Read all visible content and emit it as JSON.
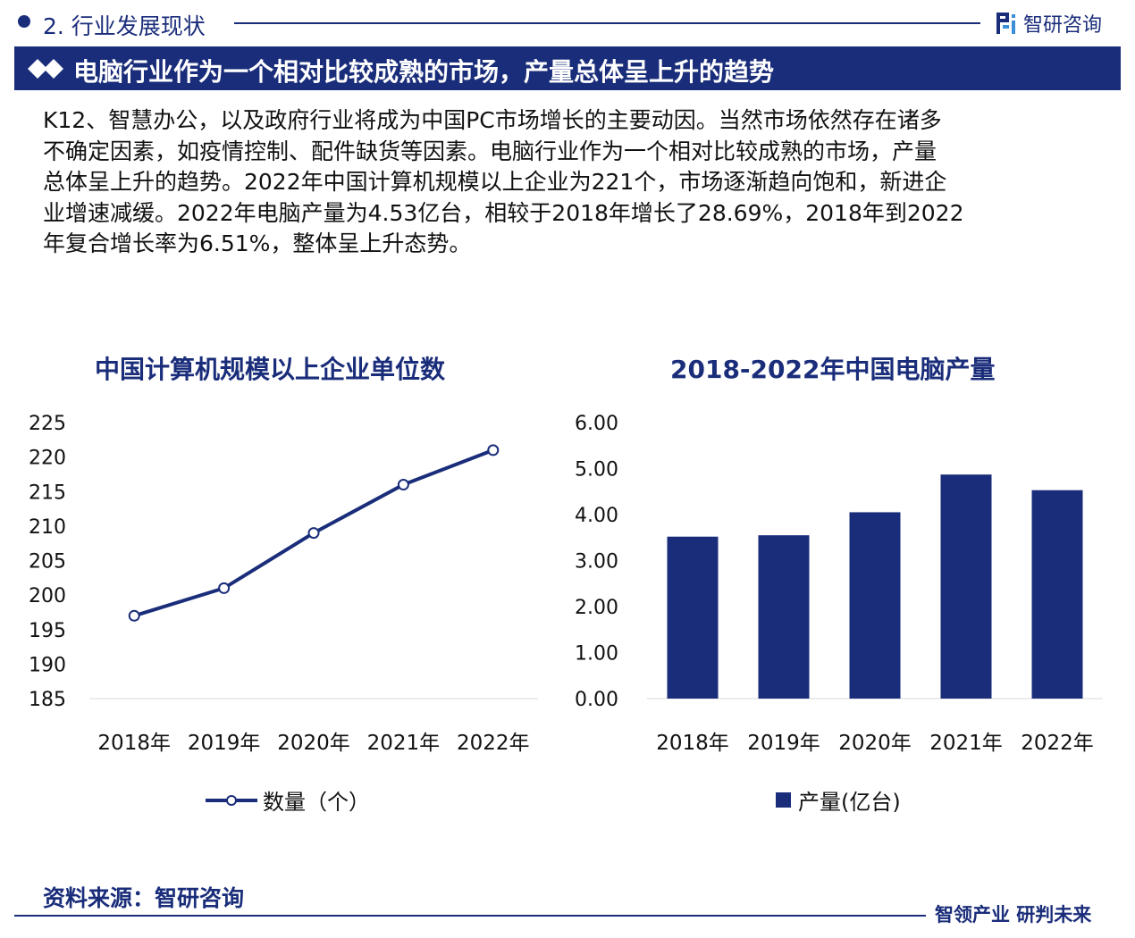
{
  "section": {
    "title": "2. 行业发展现状"
  },
  "brand": {
    "name": "智研咨询"
  },
  "banner": {
    "title": "电脑行业作为一个相对比较成熟的市场，产量总体呈上升的趋势"
  },
  "intro_lines": [
    "K12、智慧办公，以及政府行业将成为中国PC市场增长的主要动因。当然市场依然存在诸多",
    "不确定因素，如疫情控制、配件缺货等因素。电脑行业作为一个相对比较成熟的市场，产量",
    "总体呈上升的趋势。2022年中国计算机规模以上企业为221个，市场逐渐趋向饱和，新进企",
    "业增速减缓。2022年电脑产量为4.53亿台，相较于2018年增长了28.69%，2018年到2022",
    "年复合增长率为6.51%，整体呈上升态势。"
  ],
  "chart_data": [
    {
      "type": "line",
      "title": "中国计算机规模以上企业单位数",
      "categories": [
        "2018年",
        "2019年",
        "2020年",
        "2021年",
        "2022年"
      ],
      "series": [
        {
          "name": "数量（个）",
          "values": [
            197,
            201,
            209,
            216,
            221
          ]
        }
      ],
      "yticks": [
        "225",
        "220",
        "215",
        "210",
        "205",
        "200",
        "195",
        "190",
        "185"
      ],
      "ylim": [
        185,
        225
      ],
      "grid": false,
      "legend": "bottom",
      "color": "#1a2d7a"
    },
    {
      "type": "bar",
      "title": "2018-2022年中国电脑产量",
      "categories": [
        "2018年",
        "2019年",
        "2020年",
        "2021年",
        "2022年"
      ],
      "series": [
        {
          "name": "产量(亿台)",
          "values": [
            3.52,
            3.55,
            4.05,
            4.87,
            4.53
          ]
        }
      ],
      "yticks": [
        "6.00",
        "5.00",
        "4.00",
        "3.00",
        "2.00",
        "1.00",
        "0.00"
      ],
      "ylim": [
        0,
        6
      ],
      "grid": false,
      "legend": "bottom",
      "color": "#1a2d7a"
    }
  ],
  "footer": {
    "source": "资料来源：智研咨询",
    "slogan": "智领产业 研判未来"
  }
}
